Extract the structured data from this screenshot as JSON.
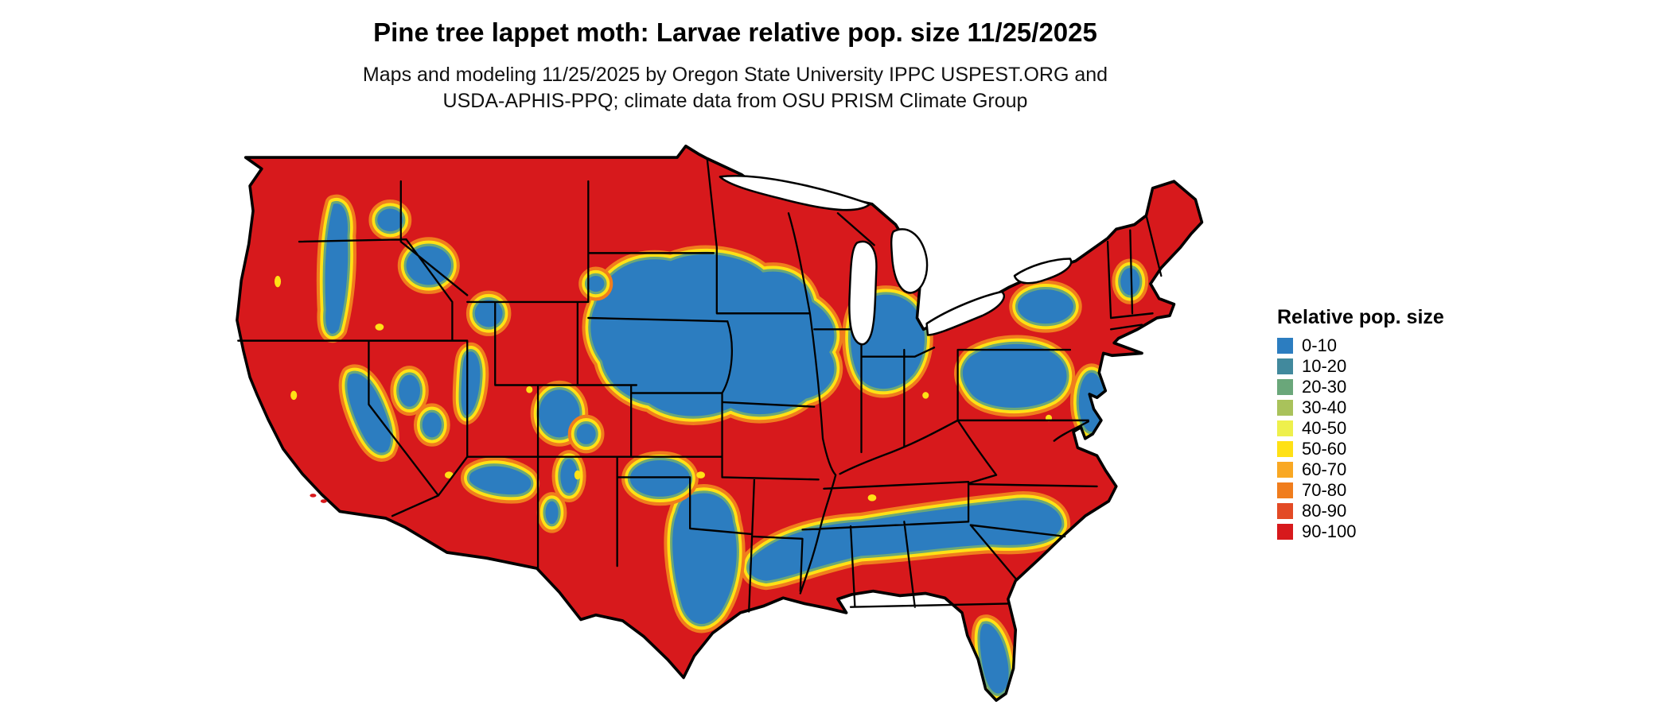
{
  "page": {
    "background_color": "#ffffff"
  },
  "header": {
    "title": "Pine tree lappet moth: Larvae relative pop. size 11/25/2025",
    "subtitle_line1": "Maps and modeling 11/25/2025 by Oregon State University IPPC USPEST.ORG and",
    "subtitle_line2": "USDA-APHIS-PPQ; climate data from OSU PRISM Climate Group"
  },
  "map": {
    "region": "Contiguous United States",
    "base_color": "#d7191c",
    "water_color": "#ffffff",
    "boundary_color": "#000000"
  },
  "legend": {
    "title": "Relative pop. size",
    "items": [
      {
        "label": "0-10",
        "color": "#2c7dc0"
      },
      {
        "label": "10-20",
        "color": "#41899d"
      },
      {
        "label": "20-30",
        "color": "#6aa77a"
      },
      {
        "label": "30-40",
        "color": "#a9c25b"
      },
      {
        "label": "40-50",
        "color": "#eef04c"
      },
      {
        "label": "50-60",
        "color": "#ffe115"
      },
      {
        "label": "60-70",
        "color": "#f9a823"
      },
      {
        "label": "70-80",
        "color": "#f07d1d"
      },
      {
        "label": "80-90",
        "color": "#e34a25"
      },
      {
        "label": "90-100",
        "color": "#d7191c"
      }
    ]
  }
}
